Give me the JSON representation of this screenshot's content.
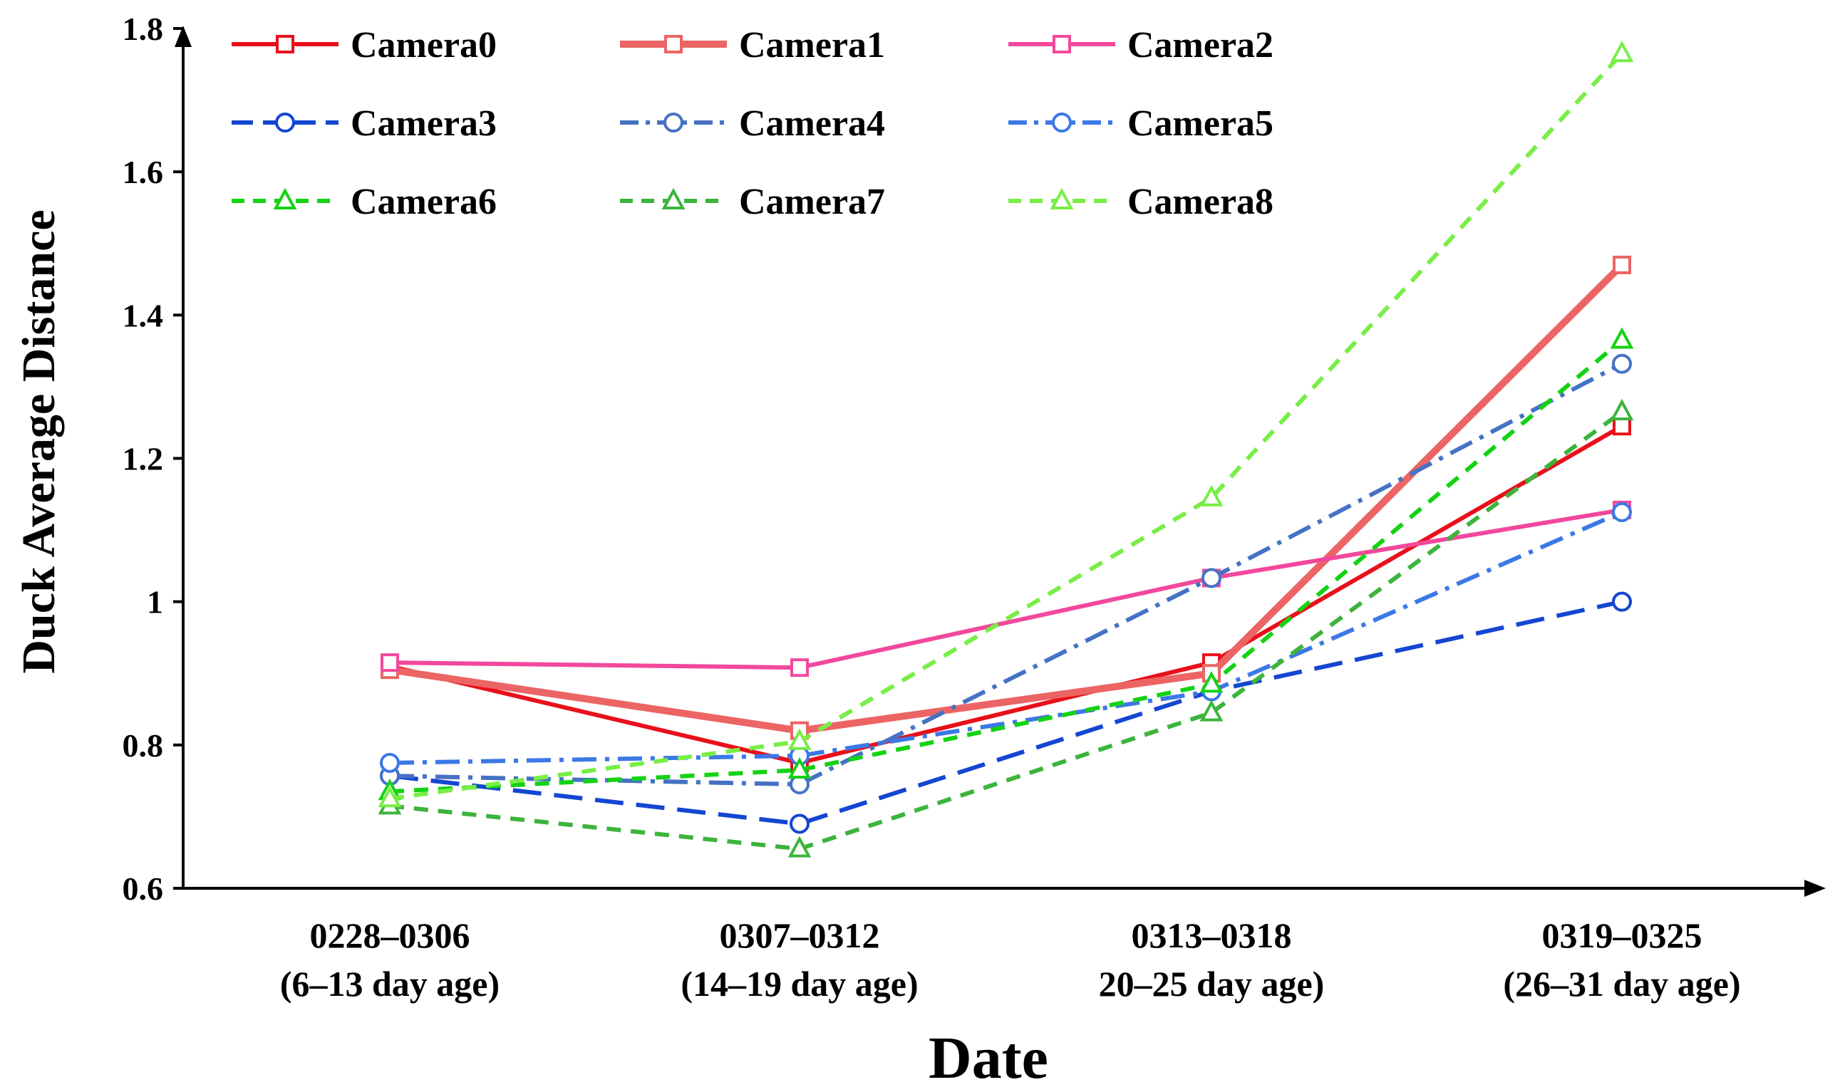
{
  "chart_data": {
    "type": "line",
    "title": "",
    "xlabel": "Date",
    "ylabel": "Duck Average Distance",
    "ylim": [
      0.6,
      1.8
    ],
    "yticks": [
      0.6,
      0.8,
      1,
      1.2,
      1.4,
      1.6,
      1.8
    ],
    "ytick_labels": [
      "0.6",
      "0.8",
      "1",
      "1.2",
      "1.4",
      "1.6",
      "1.8"
    ],
    "categories": [
      {
        "line1": "0228–0306",
        "line2": "(6–13 day age)"
      },
      {
        "line1": "0307–0312",
        "line2": "(14–19 day age)"
      },
      {
        "line1": "0313–0318",
        "line2": "20–25 day age)"
      },
      {
        "line1": "0319–0325",
        "line2": "(26–31 day age)"
      }
    ],
    "legend_position": "top",
    "series": [
      {
        "name": "Camera0",
        "color": "#e8101a",
        "marker": "square",
        "dash": "solid",
        "width": "normal",
        "values": [
          0.91,
          0.775,
          0.915,
          1.245
        ]
      },
      {
        "name": "Camera1",
        "color": "#ec6464",
        "marker": "square",
        "dash": "solid",
        "width": "thick",
        "values": [
          0.905,
          0.82,
          0.9,
          1.47
        ]
      },
      {
        "name": "Camera2",
        "color": "#f2489c",
        "marker": "square",
        "dash": "solid",
        "width": "normal",
        "values": [
          0.915,
          0.908,
          1.033,
          1.128
        ]
      },
      {
        "name": "Camera3",
        "color": "#1446d2",
        "marker": "circle",
        "dash": "longdash",
        "width": "normal",
        "values": [
          0.757,
          0.69,
          0.875,
          1.0
        ]
      },
      {
        "name": "Camera4",
        "color": "#4672c4",
        "marker": "circle",
        "dash": "dashdot",
        "width": "normal",
        "values": [
          0.757,
          0.745,
          1.033,
          1.332
        ]
      },
      {
        "name": "Camera5",
        "color": "#3c78e6",
        "marker": "circle",
        "dash": "dashdot",
        "width": "normal",
        "values": [
          0.775,
          0.785,
          0.875,
          1.125
        ]
      },
      {
        "name": "Camera6",
        "color": "#14d214",
        "marker": "triangle",
        "dash": "dash",
        "width": "normal",
        "values": [
          0.735,
          0.765,
          0.885,
          1.365
        ]
      },
      {
        "name": "Camera7",
        "color": "#3cb43c",
        "marker": "triangle",
        "dash": "dash",
        "width": "normal",
        "values": [
          0.715,
          0.655,
          0.845,
          1.265
        ]
      },
      {
        "name": "Camera8",
        "color": "#78ee46",
        "marker": "triangle",
        "dash": "dash",
        "width": "normal",
        "values": [
          0.725,
          0.805,
          1.145,
          1.765
        ]
      }
    ]
  }
}
